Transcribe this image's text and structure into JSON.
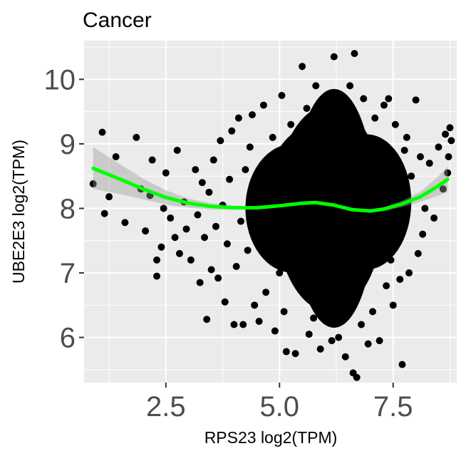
{
  "chart_data": {
    "type": "scatter",
    "title": "Cancer",
    "xlabel": "RPS23 log2(TPM)",
    "ylabel": "UBE2E3 log2(TPM)",
    "xlim": [
      0.7,
      8.9
    ],
    "ylim": [
      5.3,
      10.6
    ],
    "x_ticks": [
      2.5,
      5.0,
      7.5
    ],
    "x_tick_labels": [
      "2.5",
      "5.0",
      "7.5"
    ],
    "y_ticks": [
      6,
      7,
      8,
      9,
      10
    ],
    "y_tick_labels": [
      "6",
      "7",
      "8",
      "9",
      "10"
    ],
    "grid": true,
    "legend": "none",
    "point_color": "#000000",
    "panel_background": "#ebebeb",
    "smooth_color": "#00ff00",
    "band_color": "#999999",
    "smooth": {
      "x": [
        0.9,
        1.5,
        2.0,
        2.5,
        3.0,
        3.5,
        4.0,
        4.5,
        5.0,
        5.5,
        5.8,
        6.2,
        6.6,
        7.0,
        7.3,
        7.7,
        8.1,
        8.5,
        8.7
      ],
      "y": [
        8.62,
        8.45,
        8.3,
        8.17,
        8.08,
        8.03,
        8.01,
        8.01,
        8.04,
        8.08,
        8.09,
        8.05,
        7.98,
        7.96,
        7.99,
        8.07,
        8.18,
        8.35,
        8.45
      ],
      "lower": [
        8.3,
        8.22,
        8.14,
        8.06,
        8.01,
        7.98,
        7.98,
        7.99,
        8.02,
        8.06,
        8.08,
        8.04,
        7.97,
        7.94,
        7.96,
        8.02,
        8.1,
        8.2,
        8.25
      ],
      "upper": [
        8.95,
        8.68,
        8.46,
        8.28,
        8.15,
        8.08,
        8.04,
        8.03,
        8.06,
        8.1,
        8.1,
        8.06,
        8.0,
        7.98,
        8.02,
        8.12,
        8.26,
        8.5,
        8.65
      ]
    },
    "points": [
      [
        0.9,
        8.38
      ],
      [
        1.1,
        9.18
      ],
      [
        1.15,
        7.92
      ],
      [
        1.25,
        8.18
      ],
      [
        1.4,
        8.8
      ],
      [
        1.6,
        7.78
      ],
      [
        1.85,
        9.1
      ],
      [
        1.95,
        8.3
      ],
      [
        2.05,
        7.65
      ],
      [
        2.15,
        8.2
      ],
      [
        2.2,
        8.75
      ],
      [
        2.3,
        7.2
      ],
      [
        2.3,
        6.95
      ],
      [
        2.4,
        7.4
      ],
      [
        2.45,
        8.0
      ],
      [
        2.5,
        8.55
      ],
      [
        2.6,
        7.85
      ],
      [
        2.7,
        7.55
      ],
      [
        2.75,
        8.9
      ],
      [
        2.8,
        7.3
      ],
      [
        2.9,
        8.1
      ],
      [
        2.95,
        7.68
      ],
      [
        3.05,
        7.2
      ],
      [
        3.15,
        8.6
      ],
      [
        3.2,
        7.9
      ],
      [
        3.25,
        6.85
      ],
      [
        3.3,
        8.4
      ],
      [
        3.35,
        7.55
      ],
      [
        3.4,
        6.28
      ],
      [
        3.45,
        8.25
      ],
      [
        3.5,
        7.05
      ],
      [
        3.55,
        8.75
      ],
      [
        3.6,
        7.72
      ],
      [
        3.65,
        6.92
      ],
      [
        3.7,
        9.05
      ],
      [
        3.75,
        8.05
      ],
      [
        3.8,
        6.55
      ],
      [
        3.85,
        7.45
      ],
      [
        3.9,
        8.45
      ],
      [
        3.95,
        9.2
      ],
      [
        4.0,
        6.2
      ],
      [
        4.05,
        7.1
      ],
      [
        4.1,
        9.4
      ],
      [
        4.15,
        7.8
      ],
      [
        4.2,
        6.2
      ],
      [
        4.25,
        8.6
      ],
      [
        4.3,
        7.35
      ],
      [
        4.35,
        8.95
      ],
      [
        4.4,
        9.45
      ],
      [
        4.45,
        6.5
      ],
      [
        4.5,
        7.6
      ],
      [
        4.55,
        6.25
      ],
      [
        4.6,
        8.3
      ],
      [
        4.65,
        9.6
      ],
      [
        4.7,
        6.7
      ],
      [
        4.75,
        8.0
      ],
      [
        4.8,
        7.25
      ],
      [
        4.85,
        9.1
      ],
      [
        4.9,
        6.1
      ],
      [
        4.95,
        8.7
      ],
      [
        5.0,
        7.0
      ],
      [
        5.05,
        9.75
      ],
      [
        5.1,
        6.4
      ],
      [
        5.15,
        5.78
      ],
      [
        5.2,
        8.1
      ],
      [
        5.25,
        9.3
      ],
      [
        5.3,
        7.6
      ],
      [
        5.35,
        5.75
      ],
      [
        5.4,
        8.9
      ],
      [
        5.45,
        6.8
      ],
      [
        5.5,
        10.2
      ],
      [
        5.55,
        7.2
      ],
      [
        5.6,
        9.55
      ],
      [
        5.65,
        6.05
      ],
      [
        5.7,
        8.4
      ],
      [
        5.75,
        6.3
      ],
      [
        5.8,
        9.9
      ],
      [
        5.85,
        7.85
      ],
      [
        5.9,
        5.82
      ],
      [
        5.95,
        8.8
      ],
      [
        6.0,
        6.5
      ],
      [
        6.05,
        9.6
      ],
      [
        6.1,
        7.3
      ],
      [
        6.15,
        5.95
      ],
      [
        6.2,
        10.35
      ],
      [
        6.25,
        8.1
      ],
      [
        6.3,
        6.0
      ],
      [
        6.35,
        9.2
      ],
      [
        6.4,
        7.5
      ],
      [
        6.45,
        5.7
      ],
      [
        6.5,
        8.6
      ],
      [
        6.55,
        9.9
      ],
      [
        6.6,
        6.6
      ],
      [
        6.62,
        5.45
      ],
      [
        6.65,
        10.4
      ],
      [
        6.7,
        5.38
      ],
      [
        6.75,
        7.9
      ],
      [
        6.8,
        6.2
      ],
      [
        6.85,
        9.7
      ],
      [
        6.9,
        7.1
      ],
      [
        6.95,
        5.9
      ],
      [
        7.0,
        8.8
      ],
      [
        7.05,
        6.4
      ],
      [
        7.1,
        9.4
      ],
      [
        7.15,
        7.5
      ],
      [
        7.2,
        5.95
      ],
      [
        7.25,
        8.3
      ],
      [
        7.3,
        9.6
      ],
      [
        7.35,
        6.8
      ],
      [
        7.4,
        9.7
      ],
      [
        7.45,
        7.2
      ],
      [
        7.5,
        6.5
      ],
      [
        7.55,
        9.3
      ],
      [
        7.6,
        7.7
      ],
      [
        7.65,
        6.9
      ],
      [
        7.7,
        5.58
      ],
      [
        7.75,
        8.9
      ],
      [
        7.8,
        9.1
      ],
      [
        7.85,
        7.0
      ],
      [
        7.9,
        8.5
      ],
      [
        8.0,
        9.68
      ],
      [
        8.05,
        7.3
      ],
      [
        8.1,
        8.8
      ],
      [
        8.15,
        7.6
      ],
      [
        8.2,
        8.0
      ],
      [
        8.3,
        8.7
      ],
      [
        8.4,
        7.85
      ],
      [
        8.5,
        8.95
      ],
      [
        8.6,
        8.3
      ],
      [
        8.65,
        9.15
      ],
      [
        8.7,
        8.55
      ],
      [
        8.72,
        8.8
      ],
      [
        8.75,
        9.25
      ],
      [
        8.78,
        9.05
      ]
    ],
    "dense_cloud": [
      {
        "cx": 6.0,
        "cy": 8.1,
        "rx": 1.35,
        "ry": 1.25
      },
      {
        "cx": 6.1,
        "cy": 8.0,
        "rx": 1.2,
        "ry": 1.6
      },
      {
        "cx": 5.9,
        "cy": 7.9,
        "rx": 1.6,
        "ry": 0.95
      },
      {
        "cx": 6.2,
        "cy": 8.0,
        "rx": 0.9,
        "ry": 1.85
      },
      {
        "cx": 5.3,
        "cy": 8.0,
        "rx": 1.05,
        "ry": 1.0
      },
      {
        "cx": 6.9,
        "cy": 8.1,
        "rx": 1.0,
        "ry": 1.05
      }
    ]
  }
}
